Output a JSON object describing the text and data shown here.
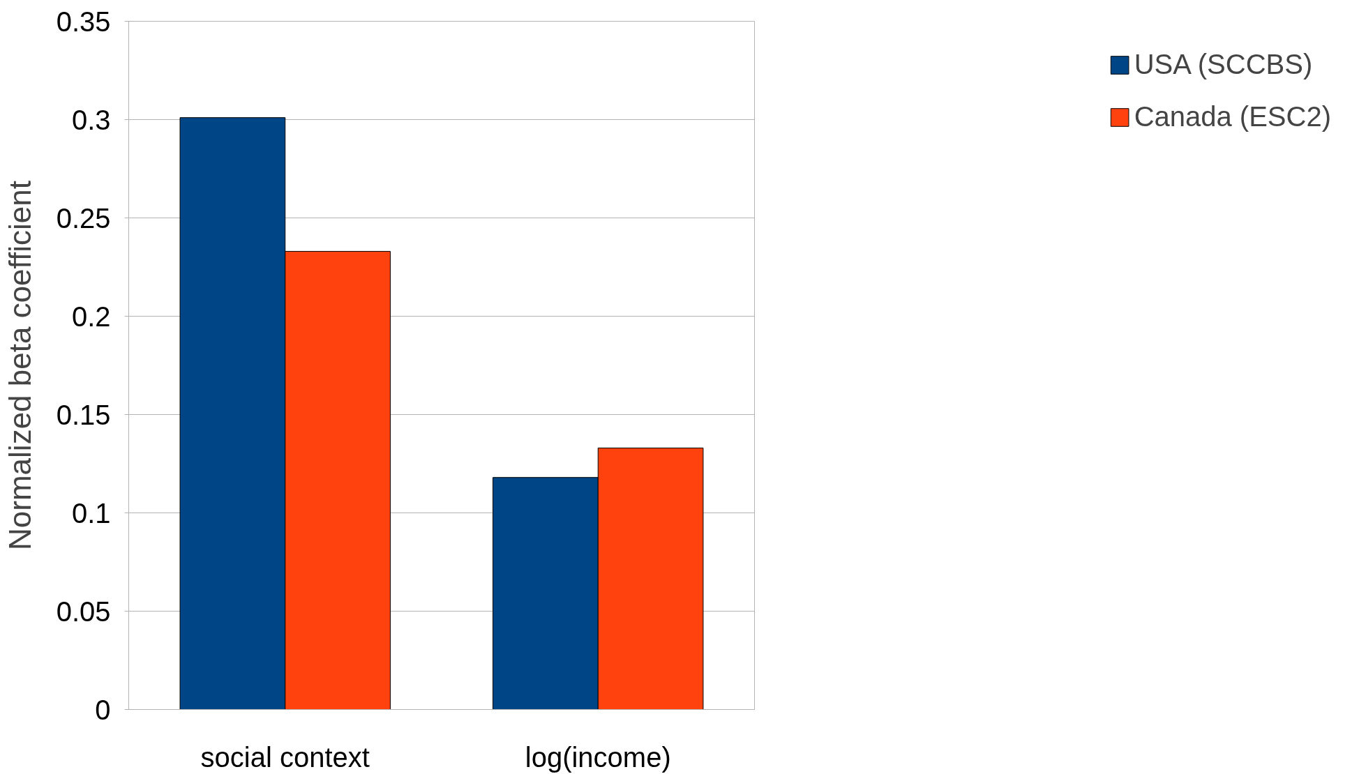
{
  "chart_data": {
    "type": "bar",
    "ylabel": "Normalized beta coefficient",
    "categories": [
      "social context",
      "log(income)"
    ],
    "series": [
      {
        "name": "USA (SCCBS)",
        "color": "#004586",
        "values": [
          0.301,
          0.118
        ]
      },
      {
        "name": "Canada (ESC2)",
        "color": "#ff420e",
        "values": [
          0.233,
          0.133
        ]
      }
    ],
    "ylim": [
      0,
      0.35
    ],
    "yticks": [
      0,
      0.05,
      0.1,
      0.15,
      0.2,
      0.25,
      0.3,
      0.35
    ],
    "grid": "y",
    "legend": "right"
  }
}
